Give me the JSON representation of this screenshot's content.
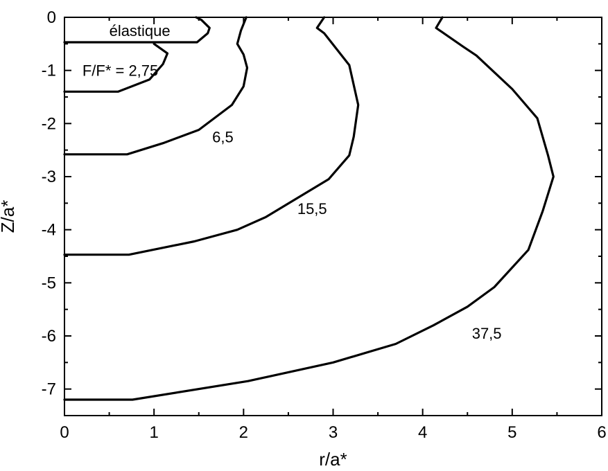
{
  "chart_data": {
    "type": "line",
    "title": "",
    "xlabel": "r/a*",
    "ylabel": "Z/a*",
    "xlim": [
      0,
      6
    ],
    "ylim": [
      -7.5,
      0
    ],
    "x_ticks": [
      0,
      1,
      2,
      3,
      4,
      5,
      6
    ],
    "x_tick_labels": [
      "0",
      "1",
      "2",
      "3",
      "4",
      "5",
      "6"
    ],
    "y_ticks": [
      0,
      -1,
      -2,
      -3,
      -4,
      -5,
      -6,
      -7
    ],
    "y_tick_labels": [
      "0",
      "-1",
      "-2",
      "-3",
      "-4",
      "-5",
      "-6",
      "-7"
    ],
    "grid": false,
    "series": [
      {
        "id": "elastique",
        "label": "élastique",
        "points": [
          [
            0,
            -0.47
          ],
          [
            1.48,
            -0.47
          ],
          [
            1.6,
            -0.3
          ],
          [
            1.62,
            -0.2
          ],
          [
            1.53,
            -0.05
          ],
          [
            1.47,
            0
          ]
        ]
      },
      {
        "id": "2.75",
        "label": "F/F* = 2,75",
        "points": [
          [
            0,
            -1.4
          ],
          [
            0.6,
            -1.4
          ],
          [
            0.95,
            -1.17
          ],
          [
            1.1,
            -0.88
          ],
          [
            1.15,
            -0.68
          ],
          [
            1.0,
            -0.5
          ]
        ]
      },
      {
        "id": "6.5",
        "label": "6,5",
        "points": [
          [
            0,
            -2.58
          ],
          [
            0.7,
            -2.58
          ],
          [
            1.1,
            -2.37
          ],
          [
            1.5,
            -2.12
          ],
          [
            1.87,
            -1.65
          ],
          [
            2.0,
            -1.3
          ],
          [
            2.04,
            -0.95
          ],
          [
            2.0,
            -0.7
          ],
          [
            1.93,
            -0.5
          ],
          [
            1.97,
            -0.25
          ],
          [
            2.03,
            0
          ]
        ]
      },
      {
        "id": "15.5",
        "label": "15,5",
        "points": [
          [
            0,
            -4.47
          ],
          [
            0.72,
            -4.47
          ],
          [
            1.45,
            -4.22
          ],
          [
            1.93,
            -4.0
          ],
          [
            2.25,
            -3.76
          ],
          [
            2.95,
            -3.05
          ],
          [
            3.18,
            -2.6
          ],
          [
            3.23,
            -2.25
          ],
          [
            3.28,
            -1.65
          ],
          [
            3.18,
            -0.9
          ],
          [
            2.9,
            -0.3
          ],
          [
            2.82,
            -0.2
          ],
          [
            2.9,
            0
          ]
        ]
      },
      {
        "id": "37.5",
        "label": "37,5",
        "points": [
          [
            0,
            -7.2
          ],
          [
            0.76,
            -7.2
          ],
          [
            2.05,
            -6.85
          ],
          [
            3.0,
            -6.5
          ],
          [
            3.7,
            -6.15
          ],
          [
            4.12,
            -5.8
          ],
          [
            4.5,
            -5.45
          ],
          [
            4.8,
            -5.08
          ],
          [
            5.18,
            -4.38
          ],
          [
            5.34,
            -3.65
          ],
          [
            5.46,
            -3.0
          ],
          [
            5.4,
            -2.6
          ],
          [
            5.28,
            -1.9
          ],
          [
            5.0,
            -1.35
          ],
          [
            4.6,
            -0.72
          ],
          [
            4.45,
            -0.55
          ],
          [
            4.15,
            -0.2
          ],
          [
            4.22,
            0
          ]
        ]
      }
    ],
    "annotations": [
      {
        "id": "elastique",
        "text": "élastique",
        "x": 0.5,
        "y": -0.25
      },
      {
        "id": "2.75",
        "text": "F/F* = 2,75",
        "x": 0.2,
        "y": -1.0
      },
      {
        "id": "6.5",
        "text": "6,5",
        "x": 1.65,
        "y": -2.25
      },
      {
        "id": "15.5",
        "text": "15,5",
        "x": 2.6,
        "y": -3.6
      },
      {
        "id": "37.5",
        "text": "37,5",
        "x": 4.55,
        "y": -5.95
      }
    ]
  }
}
